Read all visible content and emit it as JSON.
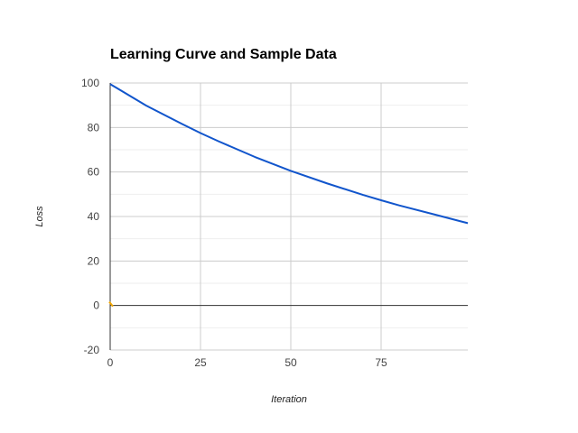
{
  "chart_data": {
    "type": "line",
    "title": "Learning Curve and Sample Data",
    "xlabel": "Iteration",
    "ylabel": "Loss",
    "xlim": [
      0,
      99
    ],
    "ylim": [
      -20,
      100
    ],
    "x_ticks": [
      "0",
      "25",
      "50",
      "75"
    ],
    "y_ticks": [
      "100",
      "80",
      "60",
      "40",
      "20",
      "0",
      "-20"
    ],
    "grid": true,
    "legend": "none",
    "series": [
      {
        "color": "#1155cc",
        "x": [
          0,
          10,
          20,
          25,
          30,
          40,
          50,
          60,
          70,
          75,
          80,
          90,
          99
        ],
        "values": [
          99.5,
          89.8,
          81.5,
          77.5,
          73.8,
          66.8,
          60.5,
          54.9,
          49.7,
          47.3,
          45.0,
          40.8,
          37.0
        ]
      },
      {
        "color": "#f1a600",
        "x": [
          0
        ],
        "values": [
          0.4
        ]
      }
    ]
  }
}
